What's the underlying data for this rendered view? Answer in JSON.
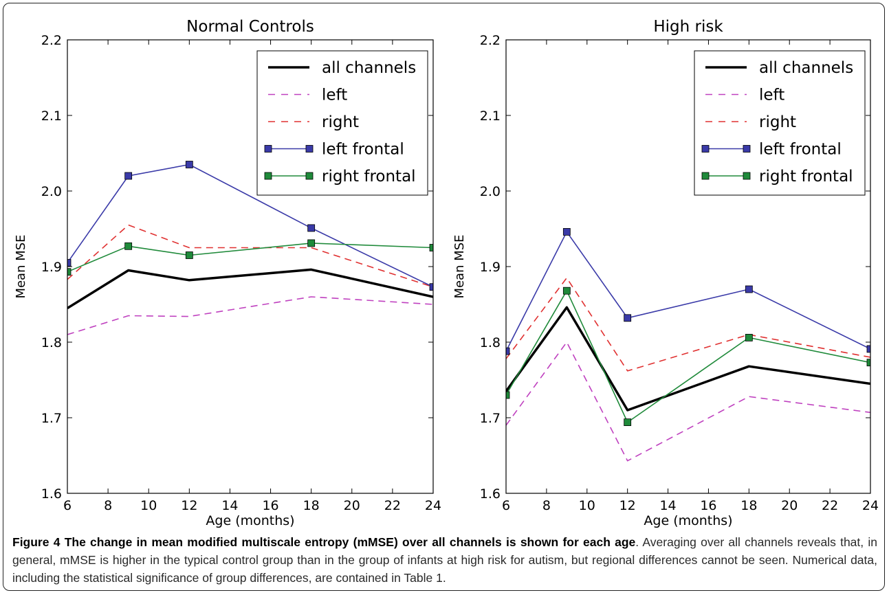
{
  "figure": {
    "caption_label": "Figure 4",
    "caption_title": "The change in mean modified multiscale entropy (mMSE) over all channels is shown for each age",
    "caption_body": ". Averaging over all channels reveals that, in general, mMSE is higher in the typical control group than in the group of infants at high risk for autism, but regional differences cannot be seen. Numerical data, including the statistical significance of group differences, are contained in Table 1."
  },
  "chart_data": [
    {
      "type": "line",
      "title": "Normal Controls",
      "xlabel": "Age (months)",
      "ylabel": "Mean MSE",
      "xlim": [
        6,
        24
      ],
      "ylim": [
        1.6,
        2.2
      ],
      "xticks": [
        6,
        8,
        10,
        12,
        14,
        16,
        18,
        20,
        22,
        24
      ],
      "yticks": [
        1.6,
        1.7,
        1.8,
        1.9,
        2.0,
        2.1,
        2.2
      ],
      "x": [
        6,
        9,
        12,
        18,
        24
      ],
      "legend_position": "top-right",
      "series": [
        {
          "name": "all channels",
          "values": [
            1.845,
            1.895,
            1.882,
            1.896,
            1.86
          ],
          "color": "#000000",
          "style": "solid",
          "marker": "none",
          "width": 3.5
        },
        {
          "name": "left",
          "values": [
            1.81,
            1.835,
            1.834,
            1.86,
            1.85
          ],
          "color": "#bf40bf",
          "style": "dashed",
          "marker": "none",
          "width": 1.6
        },
        {
          "name": "right",
          "values": [
            1.883,
            1.955,
            1.925,
            1.925,
            1.873
          ],
          "color": "#e03030",
          "style": "dashed",
          "marker": "none",
          "width": 1.6
        },
        {
          "name": "left frontal",
          "values": [
            1.905,
            2.02,
            2.035,
            1.951,
            1.873
          ],
          "color": "#3a3aa8",
          "style": "solid",
          "marker": "square",
          "width": 1.6
        },
        {
          "name": "right frontal",
          "values": [
            1.893,
            1.927,
            1.915,
            1.931,
            1.925
          ],
          "color": "#1f8a3a",
          "style": "solid",
          "marker": "square",
          "width": 1.6
        }
      ]
    },
    {
      "type": "line",
      "title": "High risk",
      "xlabel": "Age (months)",
      "ylabel": "Mean MSE",
      "xlim": [
        6,
        24
      ],
      "ylim": [
        1.6,
        2.2
      ],
      "xticks": [
        6,
        8,
        10,
        12,
        14,
        16,
        18,
        20,
        22,
        24
      ],
      "yticks": [
        1.6,
        1.7,
        1.8,
        1.9,
        2.0,
        2.1,
        2.2
      ],
      "x": [
        6,
        9,
        12,
        18,
        24
      ],
      "legend_position": "top-right",
      "series": [
        {
          "name": "all channels",
          "values": [
            1.735,
            1.846,
            1.71,
            1.768,
            1.745
          ],
          "color": "#000000",
          "style": "solid",
          "marker": "none",
          "width": 3.5
        },
        {
          "name": "left",
          "values": [
            1.69,
            1.8,
            1.643,
            1.728,
            1.707
          ],
          "color": "#bf40bf",
          "style": "dashed",
          "marker": "none",
          "width": 1.6
        },
        {
          "name": "right",
          "values": [
            1.778,
            1.885,
            1.762,
            1.81,
            1.78
          ],
          "color": "#e03030",
          "style": "dashed",
          "marker": "none",
          "width": 1.6
        },
        {
          "name": "left frontal",
          "values": [
            1.788,
            1.946,
            1.832,
            1.87,
            1.791
          ],
          "color": "#3a3aa8",
          "style": "solid",
          "marker": "square",
          "width": 1.6
        },
        {
          "name": "right frontal",
          "values": [
            1.73,
            1.868,
            1.694,
            1.806,
            1.773
          ],
          "color": "#1f8a3a",
          "style": "solid",
          "marker": "square",
          "width": 1.6
        }
      ]
    }
  ]
}
